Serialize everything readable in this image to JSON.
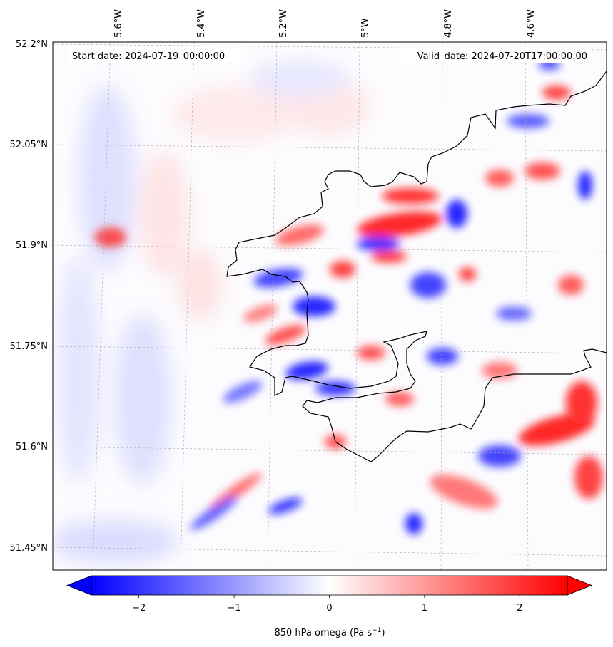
{
  "map": {
    "start_date_text": "Start date: 2024-07-19_00:00:00",
    "valid_date_text": "Valid_date: 2024-07-20T17:00:00.00",
    "lon_labels": [
      "5.6°W",
      "5.4°W",
      "5.2°W",
      "5°W",
      "4.8°W",
      "4.6°W"
    ],
    "lat_labels": [
      "52.2°N",
      "52.05°N",
      "51.9°N",
      "51.75°N",
      "51.6°N",
      "51.45°N"
    ],
    "field": "850 hPa omega",
    "colormap": "bwr",
    "color_low": "#0000ff",
    "color_mid": "#ffffff",
    "color_high": "#ff0000",
    "coastline_color": "#000000",
    "gridlines": true
  },
  "colorbar": {
    "ticks": [
      "−2",
      "−1",
      "0",
      "1",
      "2"
    ],
    "tick_values": [
      -2,
      -1,
      0,
      1,
      2
    ],
    "range": [
      -2.5,
      2.5
    ],
    "extend": "both",
    "label_main": "850 hPa omega (Pa s",
    "label_exp": "−1",
    "label_close": ")"
  }
}
